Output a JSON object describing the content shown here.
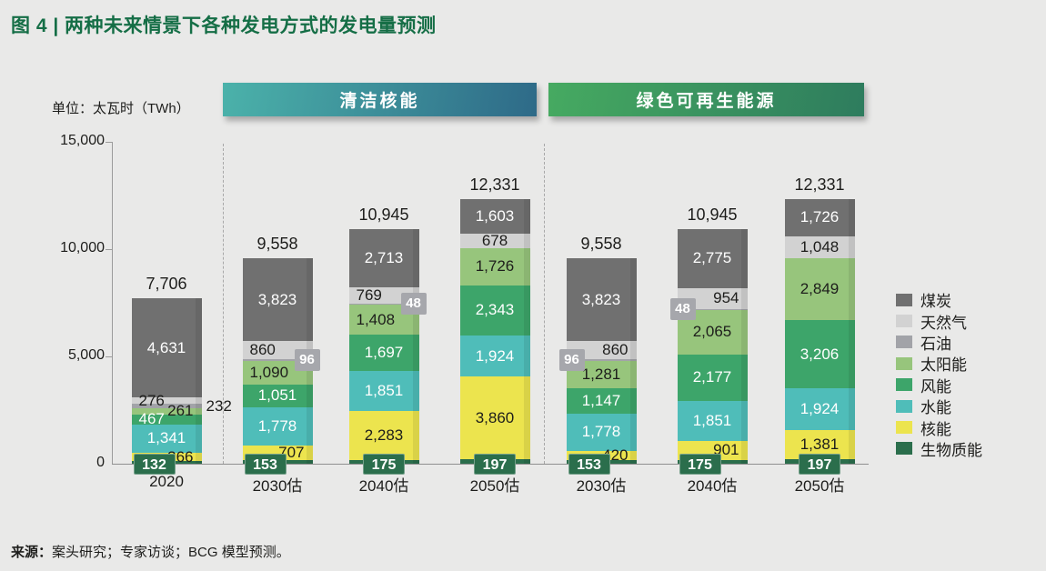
{
  "title": "图 4 | 两种未来情景下各种发电方式的发电量预测",
  "unit_label": "单位：太瓦时（TWh）",
  "source": {
    "prefix": "来源：",
    "text": "案头研究；专家访谈；BCG 模型预测。"
  },
  "accent_colors": {
    "title_green": "#156e46",
    "banner_nuclear_left": "#4bb2aa",
    "banner_nuclear_right": "#2e6a88",
    "banner_renewable_left": "#46aa61",
    "banner_renewable_right": "#2e7c5e"
  },
  "chart_data": {
    "type": "bar",
    "stacked": true,
    "title": "两种未来情景下各种发电方式的发电量预测",
    "ylabel": "太瓦时（TWh）",
    "ylim": [
      0,
      15000
    ],
    "grid": false,
    "legend_position": "right",
    "y_ticks": [
      {
        "label": "0",
        "value": 0
      },
      {
        "label": "5,000",
        "value": 5000
      },
      {
        "label": "10,000",
        "value": 10000
      },
      {
        "label": "15,000",
        "value": 15000
      }
    ],
    "stack_order_bottom_to_top": [
      "生物质能",
      "核能",
      "水能",
      "风能",
      "太阳能",
      "石油",
      "天然气",
      "煤炭"
    ],
    "legend": [
      {
        "key": "coal",
        "label": "煤炭",
        "color": "#707070"
      },
      {
        "key": "gas",
        "label": "天然气",
        "color": "#d2d2d2"
      },
      {
        "key": "oil",
        "label": "石油",
        "color": "#a2a3a8"
      },
      {
        "key": "solar",
        "label": "太阳能",
        "color": "#97c57c"
      },
      {
        "key": "wind",
        "label": "风能",
        "color": "#3da56a"
      },
      {
        "key": "hydro",
        "label": "水能",
        "color": "#4fbdb9"
      },
      {
        "key": "nuclear",
        "label": "核能",
        "color": "#ece44e"
      },
      {
        "key": "biomass",
        "label": "生物质能",
        "color": "#2b6e4c"
      }
    ],
    "groups": [
      {
        "header": "",
        "bars": [
          {
            "x_label": "2020",
            "total_label": "7,706",
            "segments": [
              {
                "series": "biomass",
                "value": 132,
                "label": "132",
                "label_style": "badge-green",
                "align": "left"
              },
              {
                "series": "nuclear",
                "value": 366,
                "label": "366",
                "label_style": "in",
                "text_color": "black",
                "align": "right"
              },
              {
                "series": "hydro",
                "value": 1341,
                "label": "1,341",
                "label_style": "in",
                "text_color": "white",
                "align": "center"
              },
              {
                "series": "wind",
                "value": 467,
                "label": "467",
                "label_style": "in",
                "text_color": "white",
                "align": "left"
              },
              {
                "series": "solar",
                "value": 261,
                "label": "261",
                "label_style": "in",
                "text_color": "black",
                "align": "right"
              },
              {
                "series": "oil",
                "value": 232,
                "label": "232",
                "label_style": "outside"
              },
              {
                "series": "gas",
                "value": 276,
                "label": "276",
                "label_style": "in",
                "text_color": "black",
                "align": "left"
              },
              {
                "series": "coal",
                "value": 4631,
                "label": "4,631",
                "label_style": "in",
                "text_color": "white",
                "align": "center"
              }
            ]
          }
        ]
      },
      {
        "header": "清洁核能",
        "bars": [
          {
            "x_label": "2030估",
            "total_label": "9,558",
            "segments": [
              {
                "series": "biomass",
                "value": 153,
                "label": "153",
                "label_style": "badge-green",
                "align": "left"
              },
              {
                "series": "nuclear",
                "value": 707,
                "label": "707",
                "label_style": "in",
                "text_color": "black",
                "align": "right"
              },
              {
                "series": "hydro",
                "value": 1778,
                "label": "1,778",
                "label_style": "in",
                "text_color": "white",
                "align": "center"
              },
              {
                "series": "wind",
                "value": 1051,
                "label": "1,051",
                "label_style": "in",
                "text_color": "white",
                "align": "center"
              },
              {
                "series": "solar",
                "value": 1090,
                "label": "1,090",
                "label_style": "in",
                "text_color": "black",
                "align": "left"
              },
              {
                "series": "oil",
                "value": 96,
                "label": "96",
                "label_style": "badge-gray",
                "align": "right"
              },
              {
                "series": "gas",
                "value": 860,
                "label": "860",
                "label_style": "in",
                "text_color": "black",
                "align": "left"
              },
              {
                "series": "coal",
                "value": 3823,
                "label": "3,823",
                "label_style": "in",
                "text_color": "white",
                "align": "center"
              }
            ]
          },
          {
            "x_label": "2040估",
            "total_label": "10,945",
            "segments": [
              {
                "series": "biomass",
                "value": 175,
                "label": "175",
                "label_style": "badge-green",
                "align": "center"
              },
              {
                "series": "nuclear",
                "value": 2283,
                "label": "2,283",
                "label_style": "in",
                "text_color": "black",
                "align": "center"
              },
              {
                "series": "hydro",
                "value": 1851,
                "label": "1,851",
                "label_style": "in",
                "text_color": "white",
                "align": "center"
              },
              {
                "series": "wind",
                "value": 1697,
                "label": "1,697",
                "label_style": "in",
                "text_color": "white",
                "align": "center"
              },
              {
                "series": "solar",
                "value": 1408,
                "label": "1,408",
                "label_style": "in",
                "text_color": "black",
                "align": "left"
              },
              {
                "series": "oil",
                "value": 48,
                "label": "48",
                "label_style": "badge-gray",
                "align": "right"
              },
              {
                "series": "gas",
                "value": 769,
                "label": "769",
                "label_style": "in",
                "text_color": "black",
                "align": "left"
              },
              {
                "series": "coal",
                "value": 2713,
                "label": "2,713",
                "label_style": "in",
                "text_color": "white",
                "align": "center"
              }
            ]
          },
          {
            "x_label": "2050估",
            "total_label": "12,331",
            "segments": [
              {
                "series": "biomass",
                "value": 197,
                "label": "197",
                "label_style": "badge-green",
                "align": "center"
              },
              {
                "series": "nuclear",
                "value": 3860,
                "label": "3,860",
                "label_style": "in",
                "text_color": "black",
                "align": "center"
              },
              {
                "series": "hydro",
                "value": 1924,
                "label": "1,924",
                "label_style": "in",
                "text_color": "white",
                "align": "center"
              },
              {
                "series": "wind",
                "value": 2343,
                "label": "2,343",
                "label_style": "in",
                "text_color": "white",
                "align": "center"
              },
              {
                "series": "solar",
                "value": 1726,
                "label": "1,726",
                "label_style": "in",
                "text_color": "black",
                "align": "center"
              },
              {
                "series": "gas",
                "value": 678,
                "label": "678",
                "label_style": "in",
                "text_color": "black",
                "align": "center"
              },
              {
                "series": "coal",
                "value": 1603,
                "label": "1,603",
                "label_style": "in",
                "text_color": "white",
                "align": "center"
              }
            ]
          }
        ]
      },
      {
        "header": "绿色可再生能源",
        "bars": [
          {
            "x_label": "2030估",
            "total_label": "9,558",
            "segments": [
              {
                "series": "biomass",
                "value": 153,
                "label": "153",
                "label_style": "badge-green",
                "align": "left"
              },
              {
                "series": "nuclear",
                "value": 420,
                "label": "420",
                "label_style": "in",
                "text_color": "black",
                "align": "right"
              },
              {
                "series": "hydro",
                "value": 1778,
                "label": "1,778",
                "label_style": "in",
                "text_color": "white",
                "align": "center"
              },
              {
                "series": "wind",
                "value": 1147,
                "label": "1,147",
                "label_style": "in",
                "text_color": "white",
                "align": "center"
              },
              {
                "series": "solar",
                "value": 1281,
                "label": "1,281",
                "label_style": "in",
                "text_color": "black",
                "align": "center"
              },
              {
                "series": "oil",
                "value": 96,
                "label": "96",
                "label_style": "badge-gray",
                "align": "left"
              },
              {
                "series": "gas",
                "value": 860,
                "label": "860",
                "label_style": "in",
                "text_color": "black",
                "align": "right"
              },
              {
                "series": "coal",
                "value": 3823,
                "label": "3,823",
                "label_style": "in",
                "text_color": "white",
                "align": "center"
              }
            ]
          },
          {
            "x_label": "2040估",
            "total_label": "10,945",
            "segments": [
              {
                "series": "biomass",
                "value": 175,
                "label": "175",
                "label_style": "badge-green",
                "align": "left"
              },
              {
                "series": "nuclear",
                "value": 901,
                "label": "901",
                "label_style": "in",
                "text_color": "black",
                "align": "right"
              },
              {
                "series": "hydro",
                "value": 1851,
                "label": "1,851",
                "label_style": "in",
                "text_color": "white",
                "align": "center"
              },
              {
                "series": "wind",
                "value": 2177,
                "label": "2,177",
                "label_style": "in",
                "text_color": "white",
                "align": "center"
              },
              {
                "series": "solar",
                "value": 2065,
                "label": "2,065",
                "label_style": "in",
                "text_color": "black",
                "align": "center"
              },
              {
                "series": "oil",
                "value": 48,
                "label": "48",
                "label_style": "badge-gray",
                "align": "left"
              },
              {
                "series": "gas",
                "value": 954,
                "label": "954",
                "label_style": "in",
                "text_color": "black",
                "align": "right"
              },
              {
                "series": "coal",
                "value": 2775,
                "label": "2,775",
                "label_style": "in",
                "text_color": "white",
                "align": "center"
              }
            ]
          },
          {
            "x_label": "2050估",
            "total_label": "12,331",
            "segments": [
              {
                "series": "biomass",
                "value": 197,
                "label": "197",
                "label_style": "badge-green",
                "align": "center"
              },
              {
                "series": "nuclear",
                "value": 1381,
                "label": "1,381",
                "label_style": "in",
                "text_color": "black",
                "align": "center"
              },
              {
                "series": "hydro",
                "value": 1924,
                "label": "1,924",
                "label_style": "in",
                "text_color": "white",
                "align": "center"
              },
              {
                "series": "wind",
                "value": 3206,
                "label": "3,206",
                "label_style": "in",
                "text_color": "white",
                "align": "center"
              },
              {
                "series": "solar",
                "value": 2849,
                "label": "2,849",
                "label_style": "in",
                "text_color": "black",
                "align": "center"
              },
              {
                "series": "gas",
                "value": 1048,
                "label": "1,048",
                "label_style": "in",
                "text_color": "black",
                "align": "center"
              },
              {
                "series": "coal",
                "value": 1726,
                "label": "1,726",
                "label_style": "in",
                "text_color": "white",
                "align": "center"
              }
            ]
          }
        ]
      }
    ]
  }
}
